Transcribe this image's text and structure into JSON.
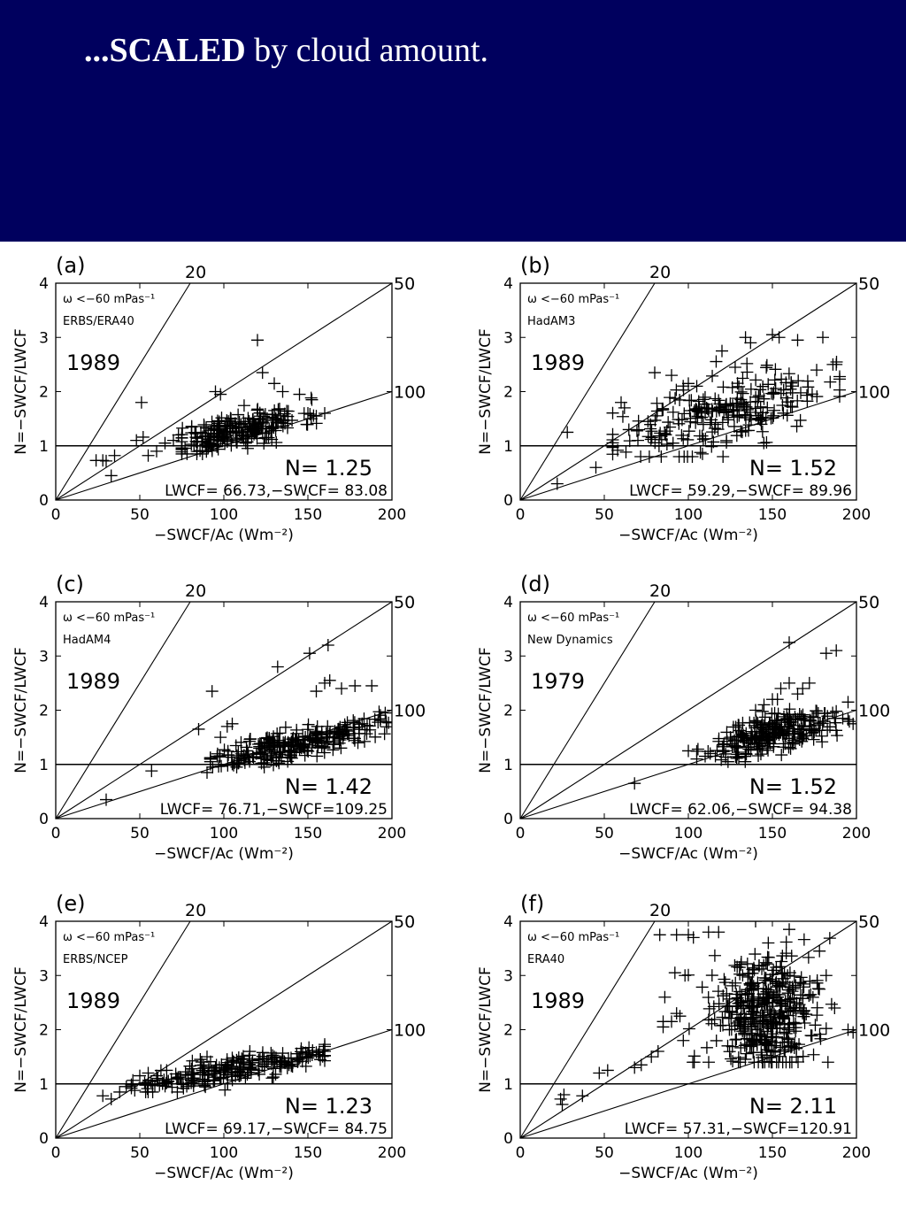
{
  "title": {
    "bold": "...SCALED",
    "rest": " by cloud amount."
  },
  "colors": {
    "header_bg": "#00005e",
    "title_text": "#ffffff",
    "plot_ink": "#000000"
  },
  "chart_data": [
    {
      "type": "scatter",
      "panel": "(a)",
      "regime": "ω <−60 mPas⁻¹",
      "dataset": "ERBS/ERA40",
      "year": "1989",
      "N": "N=  1.25",
      "lwcf": "LWCF= 66.73,−SWCF= 83.08",
      "xlabel": "−SWCF/Ac (Wm⁻²)",
      "ylabel": "N=−SWCF/LWCF",
      "xlim": [
        0,
        200
      ],
      "ylim": [
        0,
        4
      ],
      "xticks": [
        "0",
        "50",
        "100",
        "150",
        "200"
      ],
      "yticks": [
        "0",
        "1",
        "2",
        "3",
        "4"
      ],
      "ref_lines": [
        {
          "label": "20",
          "slope": 0.05
        },
        {
          "label": "50",
          "slope": 0.02
        },
        {
          "label": "100",
          "slope": 0.01
        }
      ],
      "cluster": {
        "seed": 11,
        "n": 240,
        "cx": 108,
        "cy": 1.28,
        "sx": 19,
        "sy": 0.16,
        "slope": 0.0065,
        "xmin": 75,
        "xmax": 160,
        "ymin": 0.85,
        "ymax": 2.2
      },
      "outliers": [
        [
          24,
          0.73
        ],
        [
          28,
          0.73
        ],
        [
          30,
          0.72
        ],
        [
          33,
          0.45
        ],
        [
          35,
          0.82
        ],
        [
          48,
          1.1
        ],
        [
          52,
          1.16
        ],
        [
          55,
          0.82
        ],
        [
          60,
          0.9
        ],
        [
          65,
          1.05
        ],
        [
          70,
          1.1
        ],
        [
          73,
          1.2
        ],
        [
          51,
          1.8
        ],
        [
          95,
          2.0
        ],
        [
          98,
          1.95
        ],
        [
          120,
          2.95
        ],
        [
          123,
          2.35
        ],
        [
          130,
          2.15
        ],
        [
          135,
          2.0
        ],
        [
          145,
          1.95
        ],
        [
          150,
          1.6
        ],
        [
          152,
          1.5
        ],
        [
          155,
          1.55
        ],
        [
          160,
          1.6
        ]
      ]
    },
    {
      "type": "scatter",
      "panel": "(b)",
      "regime": "ω <−60 mPas⁻¹",
      "dataset": "HadAM3",
      "year": "1989",
      "N": "N=  1.52",
      "lwcf": "LWCF= 59.29,−SWCF= 89.96",
      "xlabel": "−SWCF/Ac (Wm⁻²)",
      "ylabel": "N=−SWCF/LWCF",
      "xlim": [
        0,
        200
      ],
      "ylim": [
        0,
        4
      ],
      "xticks": [
        "0",
        "50",
        "100",
        "150",
        "200"
      ],
      "yticks": [
        "0",
        "1",
        "2",
        "3",
        "4"
      ],
      "ref_lines": [
        {
          "label": "20",
          "slope": 0.05
        },
        {
          "label": "50",
          "slope": 0.02
        },
        {
          "label": "100",
          "slope": 0.01
        }
      ],
      "cluster": {
        "seed": 23,
        "n": 240,
        "cx": 118,
        "cy": 1.58,
        "sx": 32,
        "sy": 0.32,
        "slope": 0.007,
        "xmin": 55,
        "xmax": 190,
        "ymin": 0.8,
        "ymax": 2.6
      },
      "outliers": [
        [
          22,
          0.3
        ],
        [
          28,
          1.25
        ],
        [
          45,
          0.6
        ],
        [
          55,
          1.0
        ],
        [
          60,
          1.8
        ],
        [
          62,
          1.7
        ],
        [
          70,
          1.1
        ],
        [
          80,
          2.35
        ],
        [
          90,
          2.3
        ],
        [
          100,
          2.15
        ],
        [
          105,
          2.1
        ],
        [
          120,
          2.75
        ],
        [
          134,
          3.0
        ],
        [
          137,
          2.9
        ],
        [
          150,
          3.05
        ],
        [
          154,
          3.0
        ],
        [
          165,
          2.95
        ],
        [
          180,
          3.0
        ],
        [
          186,
          2.5
        ],
        [
          188,
          2.5
        ]
      ]
    },
    {
      "type": "scatter",
      "panel": "(c)",
      "regime": "ω <−60 mPas⁻¹",
      "dataset": "HadAM4",
      "year": "1989",
      "N": "N=  1.42",
      "lwcf": "LWCF= 76.71,−SWCF=109.25",
      "xlabel": "−SWCF/Ac (Wm⁻²)",
      "ylabel": "N=−SWCF/LWCF",
      "xlim": [
        0,
        200
      ],
      "ylim": [
        0,
        4
      ],
      "xticks": [
        "0",
        "50",
        "100",
        "150",
        "200"
      ],
      "yticks": [
        "0",
        "1",
        "2",
        "3",
        "4"
      ],
      "ref_lines": [
        {
          "label": "20",
          "slope": 0.05
        },
        {
          "label": "50",
          "slope": 0.02
        },
        {
          "label": "100",
          "slope": 0.01
        }
      ],
      "cluster": {
        "seed": 37,
        "n": 260,
        "cx": 142,
        "cy": 1.38,
        "sx": 24,
        "sy": 0.14,
        "slope": 0.0068,
        "xmin": 92,
        "xmax": 198,
        "ymin": 0.95,
        "ymax": 2.0
      },
      "outliers": [
        [
          30,
          0.35
        ],
        [
          57,
          0.88
        ],
        [
          85,
          1.65
        ],
        [
          90,
          0.85
        ],
        [
          92,
          1.05
        ],
        [
          93,
          2.35
        ],
        [
          96,
          1.15
        ],
        [
          98,
          1.5
        ],
        [
          102,
          1.7
        ],
        [
          105,
          1.75
        ],
        [
          132,
          2.8
        ],
        [
          151,
          3.05
        ],
        [
          162,
          3.2
        ],
        [
          155,
          2.35
        ],
        [
          160,
          2.5
        ],
        [
          163,
          2.55
        ],
        [
          170,
          2.4
        ],
        [
          178,
          2.45
        ],
        [
          188,
          2.45
        ],
        [
          196,
          1.95
        ]
      ]
    },
    {
      "type": "scatter",
      "panel": "(d)",
      "regime": "ω <−60 mPas⁻¹",
      "dataset": "New Dynamics",
      "year": "1979",
      "N": "N=  1.52",
      "lwcf": "LWCF= 62.06,−SWCF= 94.38",
      "xlabel": "−SWCF/Ac (Wm⁻²)",
      "ylabel": "N=−SWCF/LWCF",
      "xlim": [
        0,
        200
      ],
      "ylim": [
        0,
        4
      ],
      "xticks": [
        "0",
        "50",
        "100",
        "150",
        "200"
      ],
      "yticks": [
        "0",
        "1",
        "2",
        "3",
        "4"
      ],
      "ref_lines": [
        {
          "label": "20",
          "slope": 0.05
        },
        {
          "label": "50",
          "slope": 0.02
        },
        {
          "label": "100",
          "slope": 0.01
        }
      ],
      "cluster": {
        "seed": 51,
        "n": 260,
        "cx": 150,
        "cy": 1.55,
        "sx": 19,
        "sy": 0.18,
        "slope": 0.008,
        "xmin": 105,
        "xmax": 198,
        "ymin": 1.05,
        "ymax": 2.3
      },
      "outliers": [
        [
          68,
          0.65
        ],
        [
          100,
          1.25
        ],
        [
          105,
          1.1
        ],
        [
          110,
          1.15
        ],
        [
          113,
          1.2
        ],
        [
          125,
          1.5
        ],
        [
          140,
          2.0
        ],
        [
          145,
          2.1
        ],
        [
          150,
          2.2
        ],
        [
          153,
          2.2
        ],
        [
          155,
          2.4
        ],
        [
          160,
          2.5
        ],
        [
          165,
          2.3
        ],
        [
          168,
          2.4
        ],
        [
          172,
          2.5
        ],
        [
          160,
          3.25
        ],
        [
          182,
          3.05
        ],
        [
          188,
          3.1
        ],
        [
          195,
          2.15
        ],
        [
          198,
          1.75
        ]
      ]
    },
    {
      "type": "scatter",
      "panel": "(e)",
      "regime": "ω <−60 mPas⁻¹",
      "dataset": "ERBS/NCEP",
      "year": "1989",
      "N": "N=  1.23",
      "lwcf": "LWCF= 69.17,−SWCF= 84.75",
      "xlabel": "−SWCF/Ac (Wm⁻²)",
      "ylabel": "N=−SWCF/LWCF",
      "xlim": [
        0,
        200
      ],
      "ylim": [
        0,
        4
      ],
      "xticks": [
        "0",
        "50",
        "100",
        "150",
        "200"
      ],
      "yticks": [
        "0",
        "1",
        "2",
        "3",
        "4"
      ],
      "ref_lines": [
        {
          "label": "20",
          "slope": 0.05
        },
        {
          "label": "50",
          "slope": 0.02
        },
        {
          "label": "100",
          "slope": 0.01
        }
      ],
      "cluster": {
        "seed": 67,
        "n": 220,
        "cx": 102,
        "cy": 1.22,
        "sx": 28,
        "sy": 0.12,
        "slope": 0.0055,
        "xmin": 45,
        "xmax": 160,
        "ymin": 0.85,
        "ymax": 1.75
      },
      "outliers": [
        [
          28,
          0.78
        ],
        [
          33,
          0.72
        ],
        [
          38,
          0.85
        ],
        [
          42,
          0.95
        ],
        [
          47,
          0.88
        ],
        [
          50,
          1.15
        ],
        [
          55,
          1.2
        ],
        [
          60,
          1.15
        ],
        [
          66,
          1.25
        ],
        [
          72,
          1.1
        ],
        [
          90,
          1.5
        ],
        [
          105,
          1.48
        ],
        [
          130,
          1.5
        ],
        [
          150,
          1.55
        ],
        [
          155,
          1.58
        ],
        [
          160,
          1.6
        ]
      ]
    },
    {
      "type": "scatter",
      "panel": "(f)",
      "regime": "ω <−60 mPas⁻¹",
      "dataset": "ERA40",
      "year": "1989",
      "N": "N=  2.11",
      "lwcf": "LWCF= 57.31,−SWCF=120.91",
      "xlabel": "−SWCF/Ac (Wm⁻²)",
      "ylabel": "N=−SWCF/LWCF",
      "xlim": [
        0,
        200
      ],
      "ylim": [
        0,
        4
      ],
      "xticks": [
        "0",
        "50",
        "100",
        "150",
        "200"
      ],
      "yticks": [
        "0",
        "1",
        "2",
        "3",
        "4"
      ],
      "ref_lines": [
        {
          "label": "20",
          "slope": 0.05
        },
        {
          "label": "50",
          "slope": 0.02
        },
        {
          "label": "100",
          "slope": 0.01
        }
      ],
      "cluster": {
        "seed": 83,
        "n": 420,
        "cx": 145,
        "cy": 2.3,
        "sx": 16,
        "sy": 0.55,
        "slope": 0.0,
        "xmin": 100,
        "xmax": 198,
        "ymin": 1.4,
        "ymax": 4.0
      },
      "outliers": [
        [
          24,
          0.72
        ],
        [
          25,
          0.62
        ],
        [
          26,
          0.8
        ],
        [
          37,
          0.78
        ],
        [
          47,
          1.2
        ],
        [
          52,
          1.25
        ],
        [
          68,
          1.3
        ],
        [
          72,
          1.35
        ],
        [
          78,
          1.5
        ],
        [
          82,
          1.6
        ],
        [
          85,
          2.05
        ],
        [
          85,
          2.15
        ],
        [
          86,
          2.6
        ],
        [
          90,
          2.15
        ],
        [
          93,
          2.3
        ],
        [
          95,
          2.25
        ],
        [
          97,
          1.8
        ],
        [
          92,
          3.05
        ],
        [
          98,
          3.0
        ],
        [
          83,
          3.75
        ],
        [
          93,
          3.75
        ],
        [
          100,
          3.75
        ],
        [
          103,
          3.7
        ],
        [
          112,
          3.8
        ],
        [
          118,
          3.8
        ],
        [
          140,
          4.0
        ],
        [
          160,
          3.85
        ],
        [
          178,
          3.45
        ],
        [
          182,
          3.0
        ],
        [
          187,
          2.4
        ],
        [
          195,
          2.0
        ],
        [
          198,
          1.95
        ]
      ]
    }
  ]
}
